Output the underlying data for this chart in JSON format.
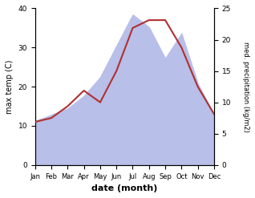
{
  "months": [
    "Jan",
    "Feb",
    "Mar",
    "Apr",
    "May",
    "Jun",
    "Jul",
    "Aug",
    "Sep",
    "Oct",
    "Nov",
    "Dec"
  ],
  "max_temp": [
    11,
    12,
    15,
    19,
    16,
    24,
    35,
    37,
    37,
    30,
    20,
    13
  ],
  "precipitation": [
    7,
    8,
    9,
    11,
    14,
    19,
    24,
    22,
    17,
    21,
    13,
    8
  ],
  "temp_color": "#b03030",
  "precip_color_fill": "#b8bfe8",
  "left_ylabel": "max temp (C)",
  "right_ylabel": "med. precipitation (kg/m2)",
  "xlabel": "date (month)",
  "ylim_left": [
    0,
    40
  ],
  "ylim_right": [
    0,
    25
  ],
  "background_color": "#ffffff"
}
